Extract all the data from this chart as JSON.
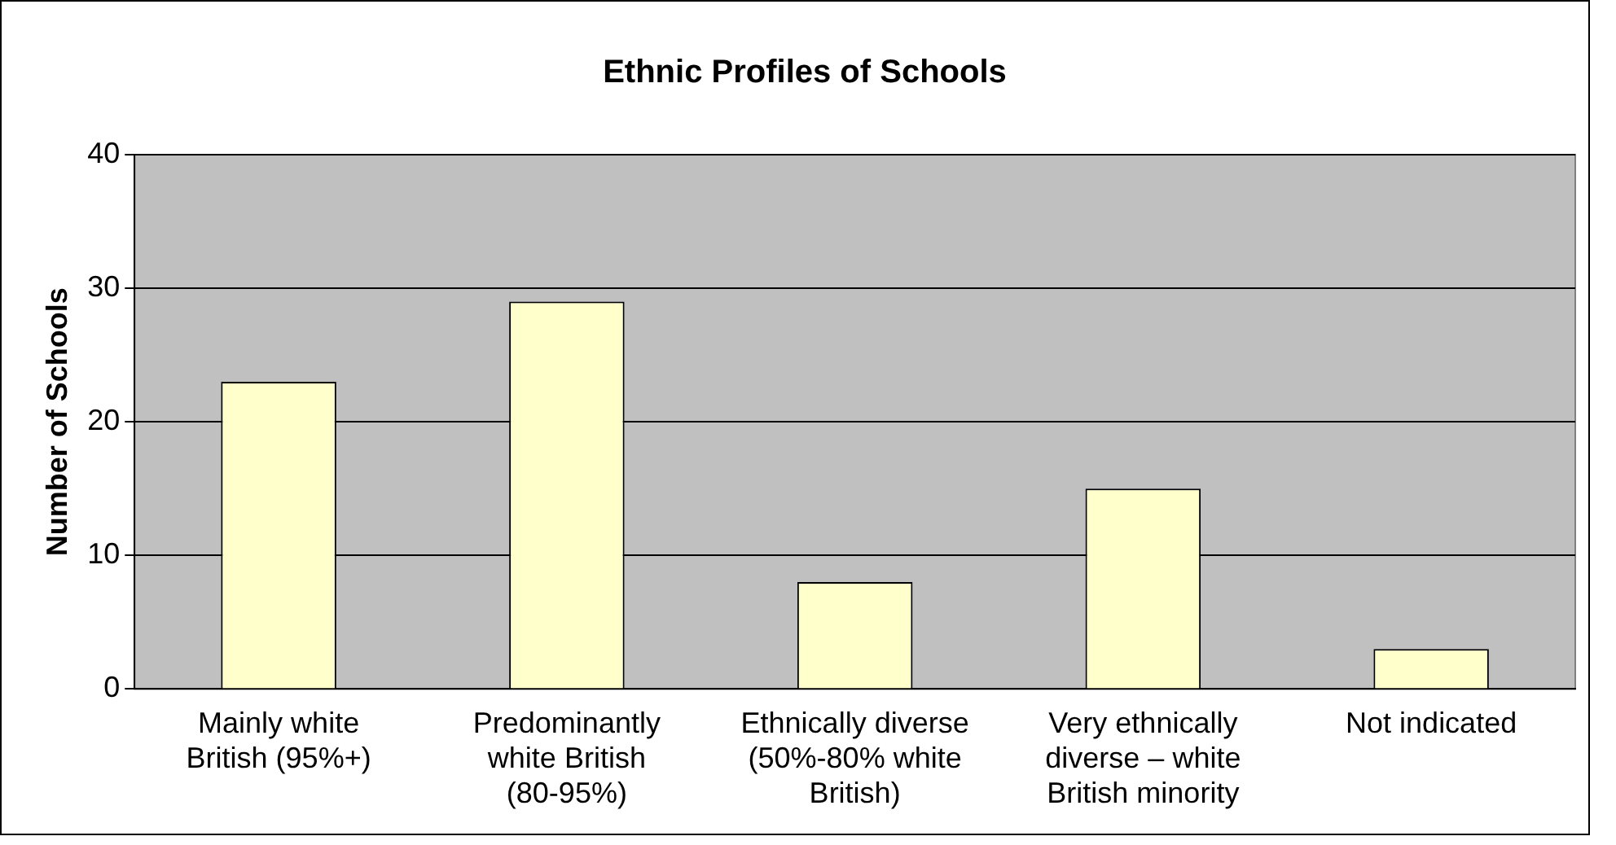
{
  "chart_data": {
    "type": "bar",
    "title": "Ethnic Profiles of Schools",
    "ylabel": "Number of Schools",
    "categories": [
      "Mainly white British (95%+)",
      "Predominantly white British (80-95%)",
      "Ethnically diverse (50%-80% white British)",
      "Very ethnically diverse – white British minority",
      "Not indicated"
    ],
    "values": [
      23,
      29,
      8,
      15,
      3
    ],
    "color": "#ffffcc",
    "ylim": [
      0,
      40
    ],
    "yticks": [
      0,
      10,
      20,
      30,
      40
    ],
    "grid": "y",
    "legend": false
  }
}
